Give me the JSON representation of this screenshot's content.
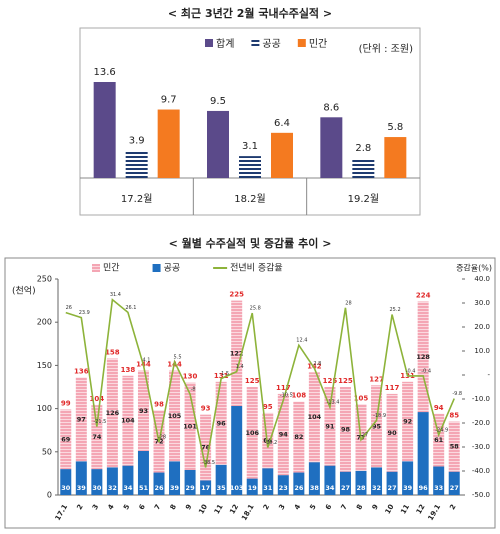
{
  "chart_data": [
    {
      "type": "grouped_bar",
      "title": "< 최근 3년간 2월 국내수주실적 >",
      "unit": "(단위 : 조원)",
      "categories": [
        "17.2월",
        "18.2월",
        "19.2월"
      ],
      "series": [
        {
          "name": "합계",
          "color": "#5b4a8a",
          "values": [
            13.6,
            9.5,
            8.6
          ]
        },
        {
          "name": "공공",
          "color": "#1f3b70",
          "hatched": true,
          "values": [
            3.9,
            3.1,
            2.8
          ]
        },
        {
          "name": "민간",
          "color": "#f47a20",
          "values": [
            9.7,
            6.4,
            5.8
          ]
        }
      ]
    },
    {
      "type": "stacked_bar_line",
      "title": "< 월별 수주실적 및 증감률 추이 >",
      "y_label": "(천억)",
      "y2_label": "증감율(%)",
      "categories": [
        "17.1",
        "2",
        "3",
        "4",
        "5",
        "6",
        "7",
        "8",
        "9",
        "10",
        "11",
        "12",
        "18.1",
        "2",
        "3",
        "4",
        "5",
        "6",
        "7",
        "8",
        "9",
        "10",
        "11",
        "12",
        "19.1",
        "2"
      ],
      "series": [
        {
          "name": "민간",
          "color": "#f4a6b4",
          "hatched": true,
          "values": [
            69,
            97,
            74,
            126,
            104,
            93,
            72,
            105,
            101,
            76,
            96,
            122,
            106,
            64,
            94,
            82,
            104,
            91,
            98,
            77,
            95,
            90,
            92,
            128,
            61,
            58
          ]
        },
        {
          "name": "공공",
          "color": "#1f6fc0",
          "values": [
            30,
            39,
            30,
            32,
            34,
            51,
            26,
            39,
            29,
            17,
            35,
            103,
            19,
            31,
            23,
            26,
            38,
            34,
            27,
            28,
            32,
            27,
            39,
            96,
            33,
            27
          ]
        },
        {
          "name": "전년비 증감율",
          "color": "#8db33a",
          "type": "line",
          "axis": "y2",
          "values": [
            26,
            23.9,
            -21.5,
            31.4,
            26.1,
            4.1,
            -28,
            5.5,
            -8,
            -38.5,
            -1.5,
            1.4,
            25.8,
            -30.2,
            -10.5,
            12.4,
            2.8,
            -13.4,
            28,
            -27,
            -18.9,
            25.2,
            -0.4,
            -0.4,
            -24.9,
            -9.8
          ]
        }
      ],
      "totals": [
        99,
        136,
        104,
        158,
        138,
        144,
        98,
        144,
        130,
        93,
        131,
        225,
        125,
        95,
        117,
        108,
        142,
        125,
        125,
        105,
        127,
        117,
        131,
        224,
        94,
        85
      ],
      "ylim": [
        0,
        250
      ],
      "yticks": [
        0,
        50,
        100,
        150,
        200,
        250
      ],
      "y2lim": [
        -50,
        40
      ],
      "y2ticks": [
        {
          "value": 40,
          "label": "40.0"
        },
        {
          "value": 30,
          "label": "30.0"
        },
        {
          "value": 20,
          "label": "20.0"
        },
        {
          "value": 10,
          "label": "10.0"
        },
        {
          "value": 0,
          "label": "-"
        },
        {
          "value": -10,
          "label": "-10.0"
        },
        {
          "value": -20,
          "label": "-20.0"
        },
        {
          "value": -30,
          "label": "-30.0"
        },
        {
          "value": -40,
          "label": "-40.0"
        },
        {
          "value": -50,
          "label": "-50.0"
        }
      ]
    }
  ]
}
